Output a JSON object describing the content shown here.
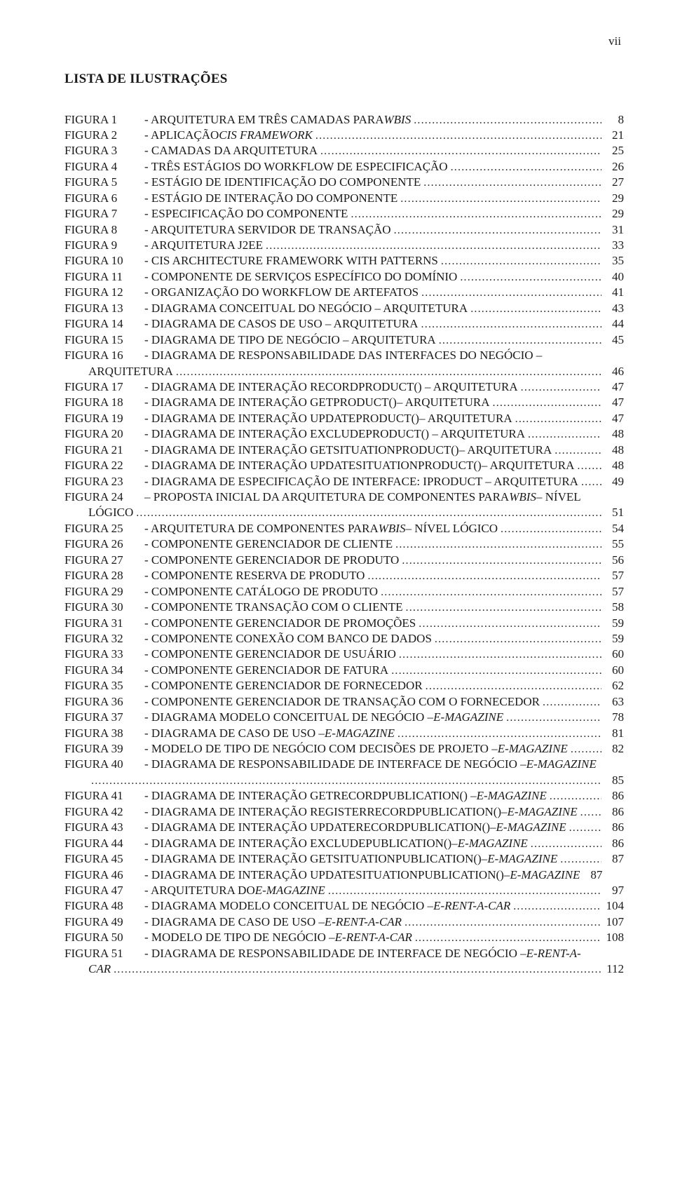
{
  "page_number_roman": "vii",
  "title": "LISTA DE ILUSTRAÇÕES",
  "entries": [
    {
      "label": "FIGURA 1",
      "desc": "- ARQUITETURA EM TRÊS CAMADAS PARA ",
      "ital": "WBIS",
      "pg": "8"
    },
    {
      "label": "FIGURA 2",
      "desc": "- APLICAÇÃO ",
      "ital": "CIS FRAMEWORK",
      "pg": "21"
    },
    {
      "label": "FIGURA 3",
      "desc": "- CAMADAS DA ARQUITETURA",
      "pg": "25"
    },
    {
      "label": "FIGURA 4",
      "desc": "- TRÊS ESTÁGIOS DO WORKFLOW DE ESPECIFICAÇÃO",
      "pg": "26"
    },
    {
      "label": "FIGURA 5",
      "desc": "- ESTÁGIO DE IDENTIFICAÇÃO DO COMPONENTE",
      "pg": "27"
    },
    {
      "label": "FIGURA 6",
      "desc": "- ESTÁGIO DE INTERAÇÃO DO COMPONENTE",
      "pg": "29"
    },
    {
      "label": "FIGURA 7",
      "desc": "- ESPECIFICAÇÃO DO COMPONENTE",
      "pg": "29"
    },
    {
      "label": "FIGURA 8",
      "desc": "- ARQUITETURA SERVIDOR DE TRANSAÇÃO",
      "pg": "31"
    },
    {
      "label": "FIGURA 9",
      "desc": "- ARQUITETURA J2EE",
      "pg": "33"
    },
    {
      "label": "FIGURA 10",
      "desc": "- CIS ARCHITECTURE FRAMEWORK WITH PATTERNS",
      "pg": "35"
    },
    {
      "label": "FIGURA 11",
      "desc": "- COMPONENTE DE SERVIÇOS ESPECÍFICO DO DOMÍNIO",
      "pg": "40"
    },
    {
      "label": "FIGURA 12",
      "desc": "- ORGANIZAÇÃO DO WORKFLOW DE ARTEFATOS",
      "pg": "41"
    },
    {
      "label": "FIGURA 13",
      "desc": "- DIAGRAMA CONCEITUAL DO NEGÓCIO – ARQUITETURA",
      "pg": "43"
    },
    {
      "label": "FIGURA 14",
      "desc": "- DIAGRAMA DE CASOS DE USO – ARQUITETURA",
      "pg": "44"
    },
    {
      "label": "FIGURA 15",
      "desc": "- DIAGRAMA DE TIPO DE NEGÓCIO – ARQUITETURA",
      "pg": "45"
    },
    {
      "label": "FIGURA 16",
      "desc": "- DIAGRAMA DE RESPONSABILIDADE DAS INTERFACES DO NEGÓCIO –",
      "cont": true
    },
    {
      "indent": true,
      "desc": "ARQUITETURA",
      "pg": "46"
    },
    {
      "label": "FIGURA 17",
      "desc": "- DIAGRAMA DE INTERAÇÃO RECORDPRODUCT() – ARQUITETURA",
      "pg": "47"
    },
    {
      "label": "FIGURA 18",
      "desc": "- DIAGRAMA DE INTERAÇÃO GETPRODUCT()– ARQUITETURA",
      "pg": "47"
    },
    {
      "label": "FIGURA 19",
      "desc": "- DIAGRAMA DE INTERAÇÃO UPDATEPRODUCT()– ARQUITETURA",
      "pg": "47"
    },
    {
      "label": "FIGURA 20",
      "desc": "- DIAGRAMA DE INTERAÇÃO EXCLUDEPRODUCT() – ARQUITETURA",
      "pg": "48"
    },
    {
      "label": "FIGURA 21",
      "desc": "- DIAGRAMA DE INTERAÇÃO GETSITUATIONPRODUCT()– ARQUITETURA",
      "pg": "48"
    },
    {
      "label": "FIGURA 22",
      "desc": "- DIAGRAMA DE INTERAÇÃO UPDATESITUATIONPRODUCT()– ARQUITETURA",
      "pg": "48",
      "tight": true
    },
    {
      "label": "FIGURA 23",
      "desc": "- DIAGRAMA DE ESPECIFICAÇÃO DE INTERFACE: IPRODUCT – ARQUITETURA",
      "pg": "49",
      "tight": true
    },
    {
      "label": "FIGURA 24",
      "desc": "– PROPOSTA INICIAL DA ARQUITETURA DE COMPONENTES PARA ",
      "ital": "WBIS",
      "tail": " – NÍVEL",
      "cont": true
    },
    {
      "indent": true,
      "desc": "LÓGICO",
      "pg": "51"
    },
    {
      "label": "FIGURA 25",
      "desc": "- ARQUITETURA DE COMPONENTES PARA ",
      "ital": "WBIS",
      "tail": " – NÍVEL LÓGICO",
      "pg": "54"
    },
    {
      "label": "FIGURA 26",
      "desc": "- COMPONENTE GERENCIADOR DE CLIENTE",
      "pg": "55"
    },
    {
      "label": "FIGURA 27",
      "desc": "- COMPONENTE GERENCIADOR DE PRODUTO",
      "pg": "56"
    },
    {
      "label": "FIGURA 28",
      "desc": "- COMPONENTE RESERVA DE PRODUTO",
      "pg": "57"
    },
    {
      "label": "FIGURA 29",
      "desc": "- COMPONENTE CATÁLOGO DE PRODUTO",
      "pg": "57"
    },
    {
      "label": "FIGURA 30",
      "desc": "- COMPONENTE TRANSAÇÃO COM O CLIENTE",
      "pg": "58"
    },
    {
      "label": "FIGURA 31",
      "desc": "- COMPONENTE GERENCIADOR DE PROMOÇÕES",
      "pg": "59"
    },
    {
      "label": "FIGURA 32",
      "desc": "- COMPONENTE CONEXÃO COM BANCO DE DADOS",
      "pg": "59"
    },
    {
      "label": "FIGURA 33",
      "desc": "- COMPONENTE GERENCIADOR DE USUÁRIO",
      "pg": "60"
    },
    {
      "label": "FIGURA 34",
      "desc": "- COMPONENTE GERENCIADOR DE FATURA",
      "pg": "60"
    },
    {
      "label": "FIGURA 35",
      "desc": "- COMPONENTE GERENCIADOR DE FORNECEDOR",
      "pg": "62"
    },
    {
      "label": "FIGURA 36",
      "desc": "- COMPONENTE GERENCIADOR DE TRANSAÇÃO COM O FORNECEDOR",
      "pg": "63"
    },
    {
      "label": "FIGURA 37",
      "desc": "- DIAGRAMA MODELO CONCEITUAL DE NEGÓCIO – ",
      "ital": "E-MAGAZINE",
      "pg": "78"
    },
    {
      "label": "FIGURA 38",
      "desc": "- DIAGRAMA DE CASO DE USO – ",
      "ital": "E-MAGAZINE",
      "pg": "81"
    },
    {
      "label": "FIGURA 39",
      "desc": "- MODELO DE TIPO DE NEGÓCIO COM DECISÕES DE PROJETO  – ",
      "ital": "E-MAGAZINE",
      "pg": "82",
      "tight": true
    },
    {
      "label": "FIGURA 40",
      "desc": "-  DIAGRAMA DE RESPONSABILIDADE DE INTERFACE DE NEGÓCIO – ",
      "ital": "E-MAGAZINE",
      "cont": true
    },
    {
      "indent": true,
      "desc": "",
      "pg": "85",
      "dotsOnly": true
    },
    {
      "label": "FIGURA 41",
      "desc": "- DIAGRAMA DE INTERAÇÃO GETRECORDPUBLICATION() – ",
      "ital": "E-MAGAZINE",
      "pg": "86"
    },
    {
      "label": "FIGURA 42",
      "desc": "- DIAGRAMA DE INTERAÇÃO REGISTERRECORDPUBLICATION()– ",
      "ital": "E-MAGAZINE",
      "pg": "86",
      "tight": true
    },
    {
      "label": "FIGURA 43",
      "desc": "- DIAGRAMA DE INTERAÇÃO UPDATERECORDPUBLICATION()– ",
      "ital": "E-MAGAZINE",
      "pg": "86",
      "tight": true
    },
    {
      "label": "FIGURA 44",
      "desc": "- DIAGRAMA DE INTERAÇÃO EXCLUDEPUBLICATION()– ",
      "ital": "E-MAGAZINE",
      "pg": "86"
    },
    {
      "label": "FIGURA 45",
      "desc": "- DIAGRAMA DE INTERAÇÃO GETSITUATIONPUBLICATION()– ",
      "ital": "E-MAGAZINE",
      "pg": "87"
    },
    {
      "label": "FIGURA 46",
      "desc": "- DIAGRAMA DE INTERAÇÃO  UPDATESITUATIONPUBLICATION()– ",
      "ital": "E-MAGAZINE",
      "pg": "87",
      "tight": true,
      "nodots": true
    },
    {
      "label": "FIGURA 47",
      "desc": "- ARQUITETURA DO ",
      "ital": "E-MAGAZINE",
      "pg": "97"
    },
    {
      "label": "FIGURA 48",
      "desc": "- DIAGRAMA MODELO CONCEITUAL DE NEGÓCIO – ",
      "ital": "E-RENT-A-CAR",
      "pg": "104"
    },
    {
      "label": "FIGURA 49",
      "desc": "- DIAGRAMA DE CASO DE USO – ",
      "ital": "E-RENT-A-CAR",
      "pg": "107"
    },
    {
      "label": "FIGURA 50",
      "desc": "- MODELO DE TIPO DE NEGÓCIO – ",
      "ital": "E-RENT-A-CAR",
      "pg": "108"
    },
    {
      "label": "FIGURA 51",
      "desc": "-  DIAGRAMA DE RESPONSABILIDADE DE INTERFACE DE NEGÓCIO – ",
      "ital": "E-RENT-A-",
      "cont": true
    },
    {
      "indent": true,
      "italLabel": "CAR",
      "desc": "",
      "pg": "112"
    }
  ]
}
